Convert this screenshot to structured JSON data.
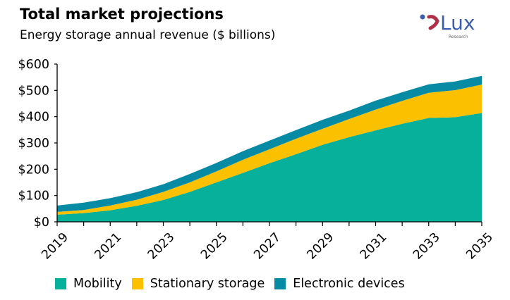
{
  "chart_data": {
    "type": "area",
    "stacked": true,
    "title": "Total market projections",
    "subtitle": "Energy storage annual revenue ($ billions)",
    "x": [
      2019,
      2020,
      2021,
      2022,
      2023,
      2024,
      2025,
      2026,
      2027,
      2028,
      2029,
      2030,
      2031,
      2032,
      2033,
      2034,
      2035
    ],
    "x_tick_labels": [
      "2019",
      "2021",
      "2023",
      "2025",
      "2027",
      "2029",
      "2031",
      "2033",
      "2035"
    ],
    "y_tick_labels": [
      "$0",
      "$100",
      "$200",
      "$300",
      "$400",
      "$500",
      "$600"
    ],
    "ylim": [
      0,
      600
    ],
    "grid": false,
    "legend_position": "bottom",
    "series": [
      {
        "name": "Mobility",
        "color": "#07B09A",
        "values": [
          27,
          33,
          44,
          61,
          83,
          114,
          150,
          186,
          223,
          257,
          293,
          322,
          348,
          373,
          395,
          398,
          414
        ]
      },
      {
        "name": "Stationary storage",
        "color": "#FBC000",
        "values": [
          11,
          12,
          18,
          23,
          31,
          36,
          42,
          50,
          53,
          59,
          61,
          69,
          79,
          87,
          96,
          103,
          108
        ]
      },
      {
        "name": "Electronic devices",
        "color": "#078BA5",
        "values": [
          24,
          28,
          28,
          29,
          29,
          32,
          32,
          33,
          33,
          33,
          34,
          32,
          34,
          33,
          32,
          33,
          33
        ]
      }
    ]
  },
  "logo": {
    "text": "Lux",
    "subtext": "Research",
    "color": "#3C5DB0"
  }
}
